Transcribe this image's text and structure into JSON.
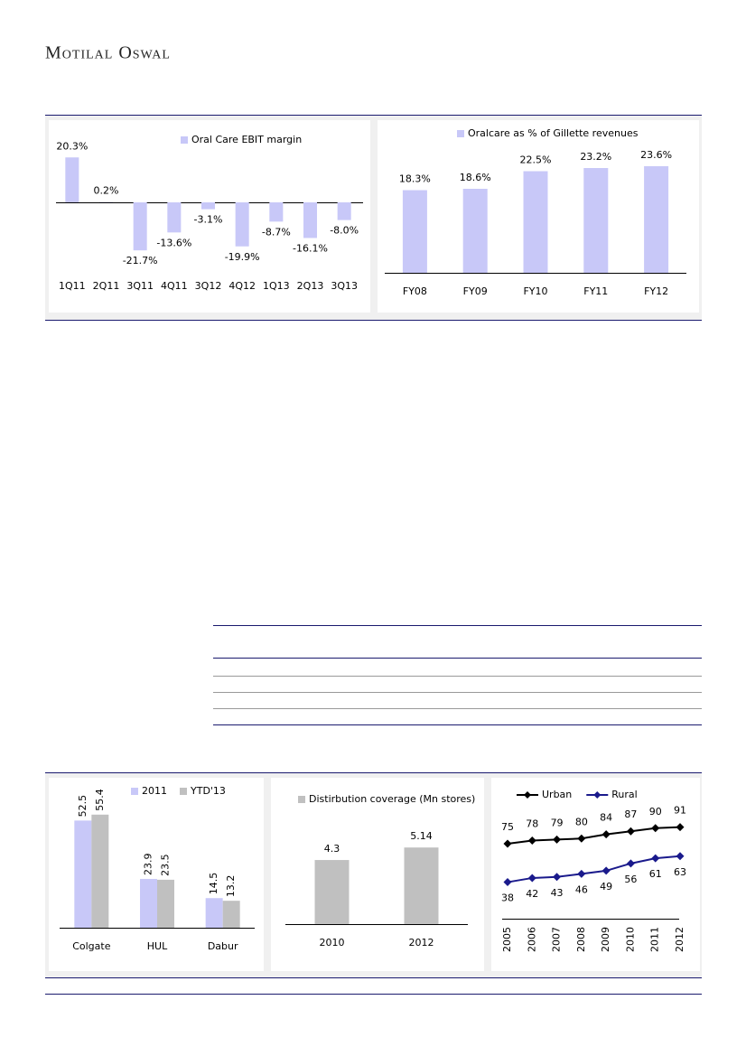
{
  "header": {
    "brand": "Motilal Oswal"
  },
  "chart_data": [
    {
      "type": "bar",
      "categories": [
        "1Q11",
        "2Q11",
        "3Q11",
        "4Q11",
        "3Q12",
        "4Q12",
        "1Q13",
        "2Q13",
        "3Q13"
      ],
      "series": [
        {
          "name": "Oral Care EBIT margin",
          "color": "#c8c8f8",
          "values": [
            20.3,
            0.2,
            -21.7,
            -13.6,
            -3.1,
            -19.9,
            -8.7,
            -16.1,
            -8.0
          ],
          "value_labels": [
            "20.3%",
            "0.2%",
            "-21.7%",
            "-13.6%",
            "-3.1%",
            "-19.9%",
            "-8.7%",
            "-16.1%",
            "-8.0%"
          ]
        }
      ]
    },
    {
      "type": "bar",
      "categories": [
        "FY08",
        "FY09",
        "FY10",
        "FY11",
        "FY12"
      ],
      "series": [
        {
          "name": "Oralcare as % of Gillette revenues",
          "color": "#c8c8f8",
          "values": [
            18.3,
            18.6,
            22.5,
            23.2,
            23.6
          ],
          "value_labels": [
            "18.3%",
            "18.6%",
            "22.5%",
            "23.2%",
            "23.6%"
          ]
        }
      ]
    },
    {
      "type": "bar",
      "categories": [
        "Colgate",
        "HUL",
        "Dabur"
      ],
      "series": [
        {
          "name": "2011",
          "color": "#c8c8f8",
          "values": [
            52.5,
            23.9,
            14.5
          ]
        },
        {
          "name": "YTD'13",
          "color": "#c0c0c0",
          "values": [
            55.4,
            23.5,
            13.2
          ]
        }
      ]
    },
    {
      "type": "bar",
      "categories": [
        "2010",
        "2012"
      ],
      "series": [
        {
          "name": "Distirbution coverage (Mn stores)",
          "color": "#c0c0c0",
          "values": [
            4.3,
            5.14
          ]
        }
      ]
    },
    {
      "type": "line",
      "categories": [
        "2005",
        "2006",
        "2007",
        "2008",
        "2009",
        "2010",
        "2011",
        "2012"
      ],
      "series": [
        {
          "name": "Urban",
          "color": "#000000",
          "values": [
            75,
            78,
            79,
            80,
            84,
            87,
            90,
            91
          ]
        },
        {
          "name": "Rural",
          "color": "#1a1a8c",
          "values": [
            38,
            42,
            43,
            46,
            49,
            56,
            61,
            63
          ]
        }
      ]
    }
  ]
}
